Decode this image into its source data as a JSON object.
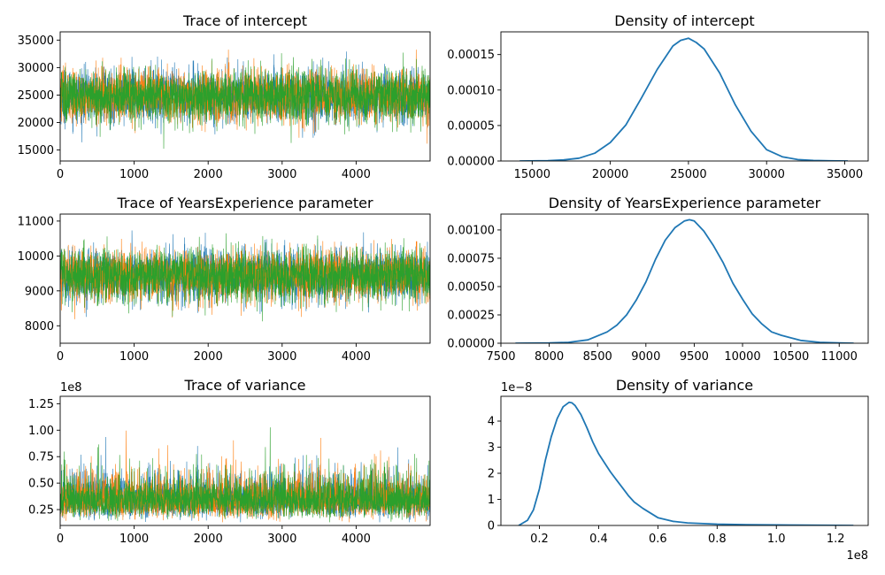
{
  "chart_data": [
    {
      "type": "line",
      "title": "Trace of intercept",
      "xlim": [
        0,
        5000
      ],
      "ylim": [
        13000,
        36500
      ],
      "xticks": [
        0,
        1000,
        2000,
        3000,
        4000
      ],
      "xtick_labels": [
        "0",
        "1000",
        "2000",
        "3000",
        "4000"
      ],
      "yticks": [
        15000,
        20000,
        25000,
        30000,
        35000
      ],
      "ytick_labels": [
        "15000",
        "20000",
        "25000",
        "30000",
        "35000"
      ],
      "offset_label": "",
      "trace": {
        "samples": 5000,
        "mean": 24800,
        "sd": 2400,
        "min": 14200,
        "max": 35200
      },
      "series": [
        {
          "color": "#1f77b4"
        },
        {
          "color": "#ff7f0e"
        },
        {
          "color": "#2ca02c"
        }
      ]
    },
    {
      "type": "line",
      "title": "Density of intercept",
      "xlim": [
        13000,
        36500
      ],
      "ylim": [
        0,
        0.000182
      ],
      "xticks": [
        15000,
        20000,
        25000,
        30000,
        35000
      ],
      "xtick_labels": [
        "15000",
        "20000",
        "25000",
        "30000",
        "35000"
      ],
      "yticks": [
        0,
        5e-05,
        0.0001,
        0.00015
      ],
      "ytick_labels": [
        "0.00000",
        "0.00005",
        "0.00010",
        "0.00015"
      ],
      "offset_label": "",
      "series": [
        {
          "color": "#1f77b4",
          "x": [
            14200,
            16000,
            17000,
            18000,
            19000,
            20000,
            21000,
            22000,
            23000,
            24000,
            24500,
            25000,
            25500,
            26000,
            27000,
            28000,
            29000,
            30000,
            31000,
            32000,
            33000,
            34000,
            35200
          ],
          "y": [
            0,
            5e-07,
            1.5e-06,
            4e-06,
            1.1e-05,
            2.6e-05,
            5.1e-05,
            8.9e-05,
            0.000129,
            0.000162,
            0.00017,
            0.000173,
            0.000167,
            0.000158,
            0.000124,
            7.9e-05,
            4.2e-05,
            1.6e-05,
            6e-06,
            2e-06,
            7e-07,
            2e-07,
            0
          ]
        }
      ]
    },
    {
      "type": "line",
      "title": "Trace of YearsExperience parameter",
      "xlim": [
        0,
        5000
      ],
      "ylim": [
        7500,
        11200
      ],
      "xticks": [
        0,
        1000,
        2000,
        3000,
        4000
      ],
      "xtick_labels": [
        "0",
        "1000",
        "2000",
        "3000",
        "4000"
      ],
      "yticks": [
        8000,
        9000,
        10000,
        11000
      ],
      "ytick_labels": [
        "8000",
        "9000",
        "10000",
        "11000"
      ],
      "offset_label": "",
      "trace": {
        "samples": 5000,
        "mean": 9450,
        "sd": 370,
        "min": 7700,
        "max": 11100
      },
      "series": [
        {
          "color": "#1f77b4"
        },
        {
          "color": "#ff7f0e"
        },
        {
          "color": "#2ca02c"
        }
      ]
    },
    {
      "type": "line",
      "title": "Density of YearsExperience parameter",
      "xlim": [
        7500,
        11300
      ],
      "ylim": [
        0,
        0.00114
      ],
      "xticks": [
        7500,
        8000,
        8500,
        9000,
        9500,
        10000,
        10500,
        11000
      ],
      "xtick_labels": [
        "7500",
        "8000",
        "8500",
        "9000",
        "9500",
        "10000",
        "10500",
        "11000"
      ],
      "yticks": [
        0,
        0.00025,
        0.0005,
        0.00075,
        0.001
      ],
      "ytick_labels": [
        "0.00000",
        "0.00025",
        "0.00050",
        "0.00075",
        "0.00100"
      ],
      "offset_label": "",
      "series": [
        {
          "color": "#1f77b4",
          "x": [
            7650,
            8000,
            8200,
            8400,
            8600,
            8700,
            8800,
            8900,
            9000,
            9100,
            9200,
            9300,
            9400,
            9450,
            9500,
            9600,
            9700,
            9800,
            9900,
            10000,
            10100,
            10200,
            10300,
            10400,
            10600,
            10800,
            11000,
            11150
          ],
          "y": [
            0,
            2e-06,
            8e-06,
            3e-05,
            0.0001,
            0.00016,
            0.00025,
            0.00038,
            0.00054,
            0.00074,
            0.00091,
            0.00102,
            0.00108,
            0.00109,
            0.00108,
            0.00099,
            0.00086,
            0.00071,
            0.00053,
            0.00039,
            0.00026,
            0.00017,
            0.0001,
            7e-05,
            2.5e-05,
            8e-06,
            2e-06,
            0
          ]
        }
      ]
    },
    {
      "type": "line",
      "title": "Trace of variance",
      "xlim": [
        0,
        5000
      ],
      "ylim": [
        10000000,
        132000000
      ],
      "xticks": [
        0,
        1000,
        2000,
        3000,
        4000
      ],
      "xtick_labels": [
        "0",
        "1000",
        "2000",
        "3000",
        "4000"
      ],
      "yticks": [
        25000000,
        50000000,
        75000000,
        100000000,
        125000000
      ],
      "ytick_labels": [
        "0.25",
        "0.50",
        "0.75",
        "1.00",
        "1.25"
      ],
      "offset_label": "1e8",
      "trace": {
        "samples": 5000,
        "mean": 34000000,
        "sd": 10000000,
        "min": 13000000,
        "max": 127000000
      },
      "series": [
        {
          "color": "#1f77b4"
        },
        {
          "color": "#ff7f0e"
        },
        {
          "color": "#2ca02c"
        }
      ]
    },
    {
      "type": "line",
      "title": "Density of variance",
      "xlim": [
        7000000,
        131000000
      ],
      "ylim": [
        0,
        4.95e-08
      ],
      "xticks": [
        20000000,
        40000000,
        60000000,
        80000000,
        100000000,
        120000000
      ],
      "xtick_labels": [
        "0.2",
        "0.4",
        "0.6",
        "0.8",
        "1.0",
        "1.2"
      ],
      "yticks": [
        0,
        1e-08,
        2e-08,
        3e-08,
        4e-08
      ],
      "ytick_labels": [
        "0",
        "1",
        "2",
        "3",
        "4"
      ],
      "offset_label": "1e8",
      "y_offset_label": "1e−8",
      "series": [
        {
          "color": "#1f77b4",
          "x": [
            13000000,
            16000000,
            18000000,
            20000000,
            22000000,
            24000000,
            26000000,
            28000000,
            30000000,
            31000000,
            32000000,
            34000000,
            36000000,
            38000000,
            40000000,
            42000000,
            44000000,
            46000000,
            48000000,
            50000000,
            52000000,
            55000000,
            60000000,
            65000000,
            70000000,
            80000000,
            90000000,
            100000000,
            110000000,
            126000000
          ],
          "y": [
            0,
            2e-09,
            6e-09,
            1.4e-08,
            2.5e-08,
            3.4e-08,
            4.1e-08,
            4.55e-08,
            4.72e-08,
            4.7e-08,
            4.6e-08,
            4.25e-08,
            3.75e-08,
            3.2e-08,
            2.75e-08,
            2.4e-08,
            2.05e-08,
            1.75e-08,
            1.45e-08,
            1.15e-08,
            9e-09,
            6.5e-09,
            3e-09,
            1.6e-09,
            1e-09,
            5e-10,
            3e-10,
            2e-10,
            1e-10,
            0
          ]
        }
      ]
    }
  ]
}
